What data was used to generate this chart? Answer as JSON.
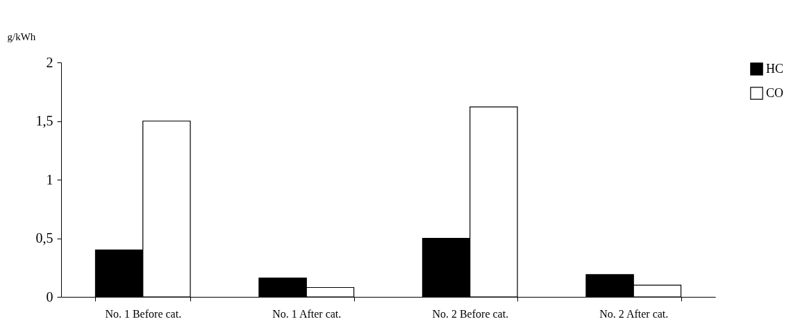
{
  "chart_data": {
    "type": "bar",
    "ylabel": "g/kWh",
    "categories": [
      "No. 1 Before cat.",
      "No. 1 After cat.",
      "No. 2 Before cat.",
      "No. 2 After cat."
    ],
    "series": [
      {
        "name": "HC",
        "color": "#000000",
        "values": [
          0.4,
          0.16,
          0.5,
          0.19
        ]
      },
      {
        "name": "CO",
        "color": "#ffffff",
        "values": [
          1.5,
          0.08,
          1.62,
          0.1
        ]
      }
    ],
    "ylim": [
      0,
      2
    ],
    "yticks": [
      0,
      {
        "value": 0.5,
        "label": "0,5"
      },
      1,
      {
        "value": 1.5,
        "label": "1,5"
      },
      2
    ],
    "grid": false,
    "legend": "right"
  }
}
